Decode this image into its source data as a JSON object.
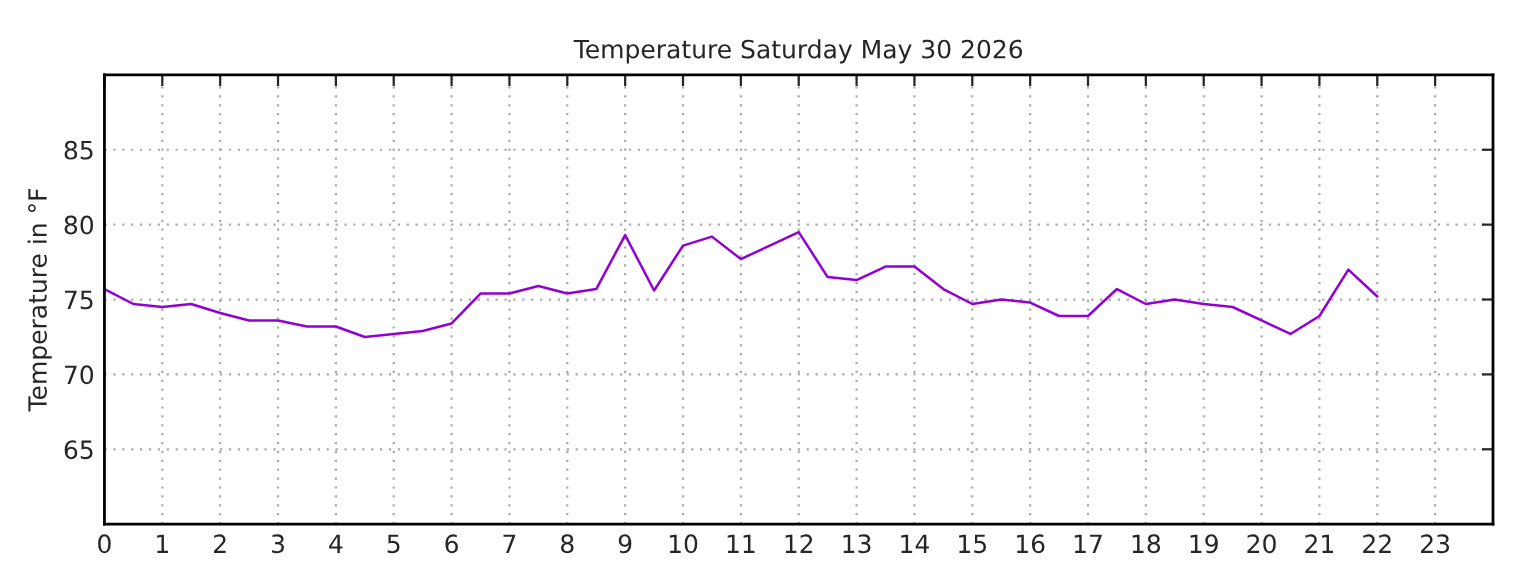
{
  "chart_data": {
    "type": "line",
    "title": "Temperature Saturday May 30 2026",
    "ylabel": "Temperature in °F",
    "x": [
      0,
      0.5,
      1,
      1.5,
      2,
      2.5,
      3,
      3.5,
      4,
      4.5,
      5,
      5.5,
      6,
      6.5,
      7,
      7.5,
      8,
      8.5,
      9,
      9.5,
      10,
      10.5,
      11,
      11.5,
      12,
      12.5,
      13,
      13.5,
      14,
      14.5,
      15,
      15.5,
      16,
      16.5,
      17,
      17.5,
      18,
      18.5,
      19,
      19.5,
      20,
      20.5,
      21,
      21.5,
      22
    ],
    "series": [
      {
        "color": "#9400d3",
        "values": [
          75.7,
          74.7,
          74.5,
          74.7,
          74.1,
          73.6,
          73.6,
          73.2,
          73.2,
          72.5,
          72.7,
          72.9,
          73.4,
          75.4,
          75.4,
          75.9,
          75.4,
          75.7,
          79.3,
          75.6,
          78.6,
          79.2,
          77.7,
          78.6,
          79.5,
          76.5,
          76.3,
          77.2,
          77.2,
          75.7,
          74.7,
          75.0,
          74.8,
          73.9,
          73.9,
          75.7,
          74.7,
          75.0,
          74.7,
          74.5,
          73.6,
          72.7,
          73.9,
          77.0,
          75.2
        ]
      }
    ],
    "xlim": [
      0,
      24
    ],
    "xticks": [
      0,
      1,
      2,
      3,
      4,
      5,
      6,
      7,
      8,
      9,
      10,
      11,
      12,
      13,
      14,
      15,
      16,
      17,
      18,
      19,
      20,
      21,
      22,
      23
    ],
    "ylim": [
      60,
      90
    ],
    "yticks": [
      65,
      70,
      75,
      80,
      85
    ],
    "grid": true,
    "line_style": "solid",
    "marker": "none",
    "legend": false
  }
}
